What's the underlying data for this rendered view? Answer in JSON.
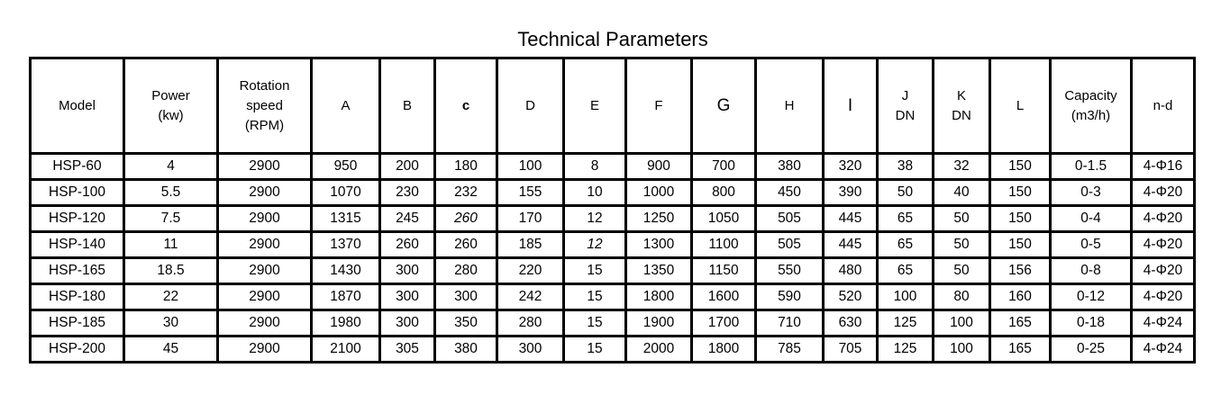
{
  "title": "Technical Parameters",
  "columns": [
    {
      "lines": [
        "Model"
      ]
    },
    {
      "lines": [
        "Power",
        "(kw)"
      ]
    },
    {
      "lines": [
        "Rotation",
        "speed",
        "(RPM)"
      ]
    },
    {
      "lines": [
        "A"
      ]
    },
    {
      "lines": [
        "B"
      ]
    },
    {
      "lines": [
        "c"
      ]
    },
    {
      "lines": [
        "D"
      ]
    },
    {
      "lines": [
        "E"
      ]
    },
    {
      "lines": [
        "F"
      ]
    },
    {
      "lines": [
        "G"
      ]
    },
    {
      "lines": [
        "H"
      ]
    },
    {
      "lines": [
        "I"
      ]
    },
    {
      "lines": [
        "J",
        "DN"
      ]
    },
    {
      "lines": [
        "K",
        "DN"
      ]
    },
    {
      "lines": [
        "L"
      ]
    },
    {
      "lines": [
        "Capacity",
        "(m3/h)"
      ]
    },
    {
      "lines": [
        "n-d"
      ]
    }
  ],
  "rows": [
    [
      "HSP-60",
      "4",
      "2900",
      "950",
      "200",
      "180",
      "100",
      "8",
      "900",
      "700",
      "380",
      "320",
      "38",
      "32",
      "150",
      "0-1.5",
      "4-Φ16"
    ],
    [
      "HSP-100",
      "5.5",
      "2900",
      "1070",
      "230",
      "232",
      "155",
      "10",
      "1000",
      "800",
      "450",
      "390",
      "50",
      "40",
      "150",
      "0-3",
      "4-Φ20"
    ],
    [
      "HSP-120",
      "7.5",
      "2900",
      "1315",
      "245",
      "260",
      "170",
      "12",
      "1250",
      "1050",
      "505",
      "445",
      "65",
      "50",
      "150",
      "0-4",
      "4-Φ20"
    ],
    [
      "HSP-140",
      "11",
      "2900",
      "1370",
      "260",
      "260",
      "185",
      "12",
      "1300",
      "1100",
      "505",
      "445",
      "65",
      "50",
      "150",
      "0-5",
      "4-Φ20"
    ],
    [
      "HSP-165",
      "18.5",
      "2900",
      "1430",
      "300",
      "280",
      "220",
      "15",
      "1350",
      "1150",
      "550",
      "480",
      "65",
      "50",
      "156",
      "0-8",
      "4-Φ20"
    ],
    [
      "HSP-180",
      "22",
      "2900",
      "1870",
      "300",
      "300",
      "242",
      "15",
      "1800",
      "1600",
      "590",
      "520",
      "100",
      "80",
      "160",
      "0-12",
      "4-Φ20"
    ],
    [
      "HSP-185",
      "30",
      "2900",
      "1980",
      "300",
      "350",
      "280",
      "15",
      "1900",
      "1700",
      "710",
      "630",
      "125",
      "100",
      "165",
      "0-18",
      "4-Φ24"
    ],
    [
      "HSP-200",
      "45",
      "2900",
      "2100",
      "305",
      "380",
      "300",
      "15",
      "2000",
      "1800",
      "785",
      "705",
      "125",
      "100",
      "165",
      "0-25",
      "4-Φ24"
    ]
  ]
}
